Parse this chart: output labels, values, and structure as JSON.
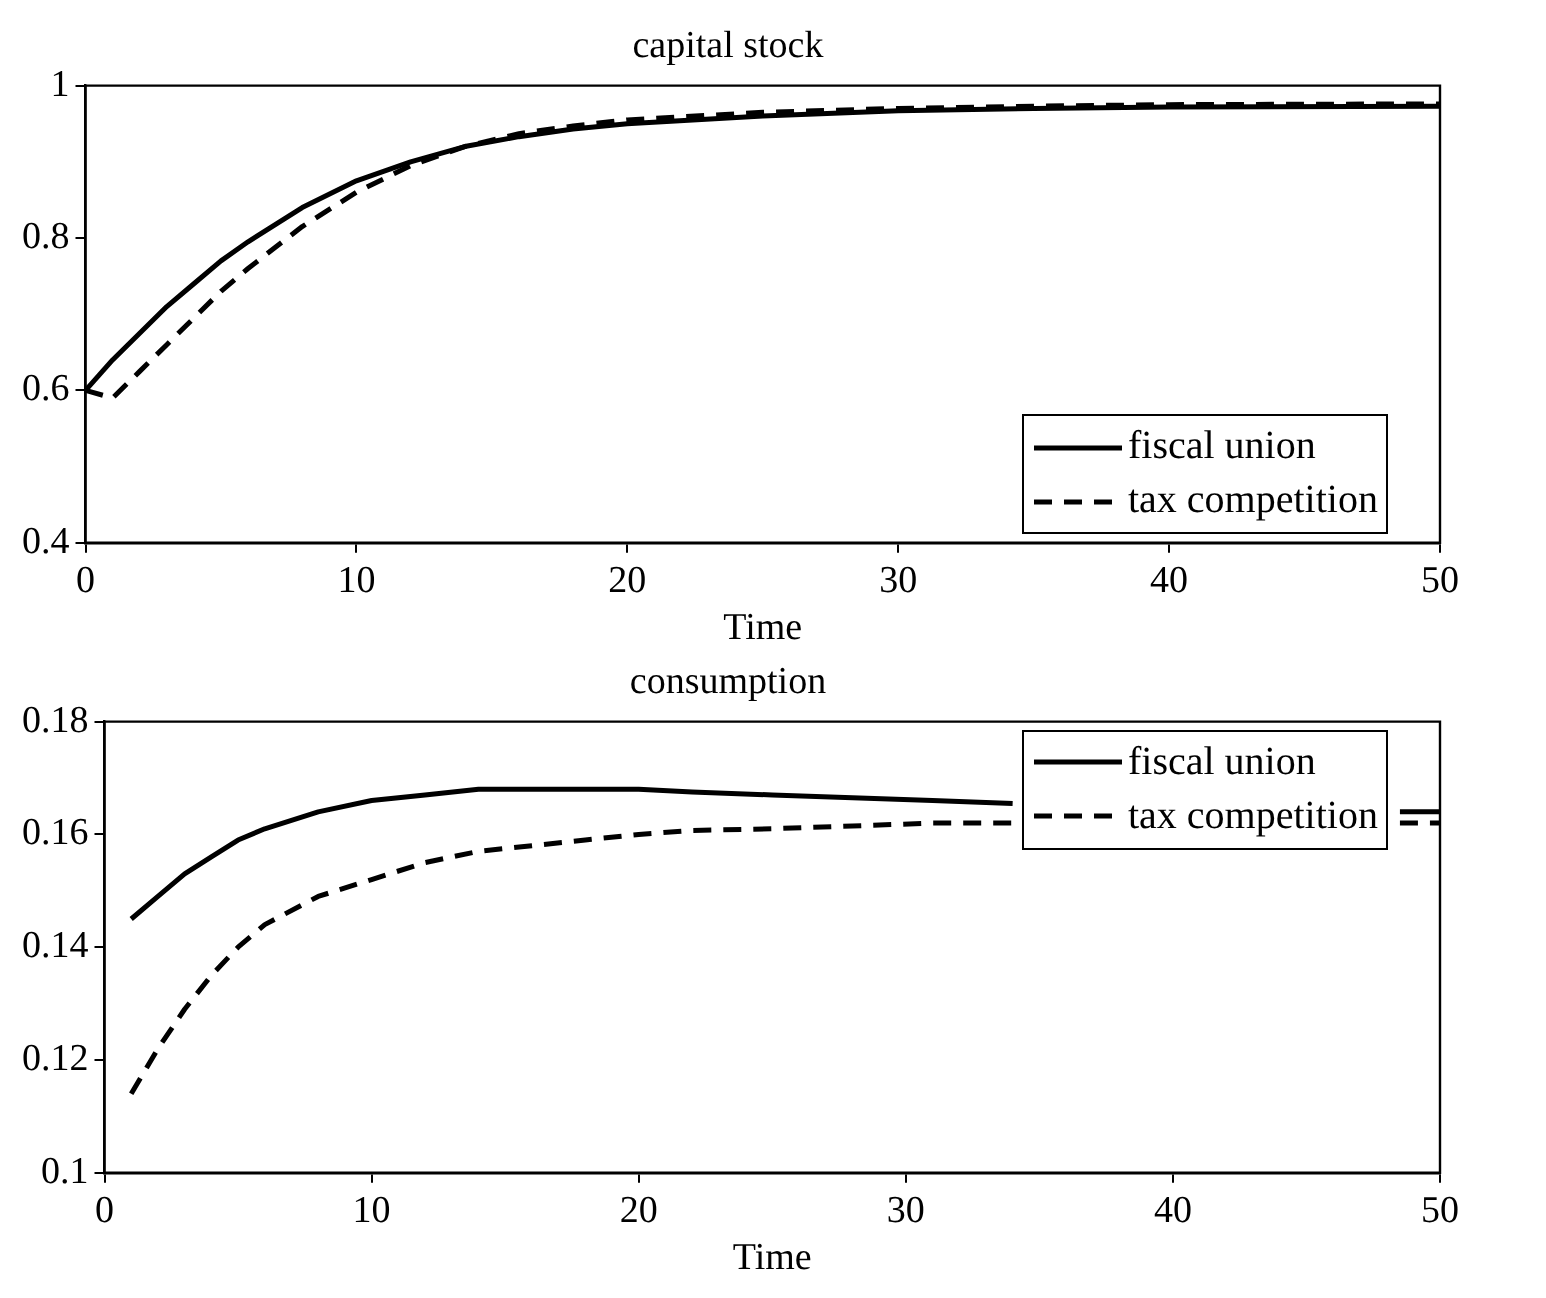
{
  "chart_data": [
    {
      "type": "line",
      "title": "capital stock",
      "xlabel": "Time",
      "x": [
        0,
        1,
        2,
        3,
        4,
        5,
        6,
        8,
        10,
        12,
        14,
        16,
        18,
        20,
        25,
        30,
        35,
        40,
        50
      ],
      "xlim": [
        0,
        50
      ],
      "xticks": [
        0,
        10,
        20,
        30,
        40,
        50
      ],
      "ylim": [
        0.4,
        1
      ],
      "yticks": [
        0.4,
        0.6,
        0.8,
        1
      ],
      "legend": "bottom right",
      "grid": false,
      "marker": "none",
      "series": [
        {
          "name": "fiscal union",
          "color": "#000000",
          "line_style": "solid",
          "values": [
            0.6,
            0.64,
            0.675,
            0.71,
            0.74,
            0.77,
            0.795,
            0.84,
            0.875,
            0.9,
            0.92,
            0.933,
            0.943,
            0.95,
            0.96,
            0.967,
            0.97,
            0.972,
            0.973
          ]
        },
        {
          "name": "tax competition",
          "color": "#000000",
          "line_style": "dashed",
          "values": [
            0.6,
            0.59,
            0.625,
            0.66,
            0.695,
            0.73,
            0.76,
            0.815,
            0.86,
            0.895,
            0.92,
            0.937,
            0.947,
            0.955,
            0.965,
            0.97,
            0.973,
            0.975,
            0.976
          ]
        }
      ]
    },
    {
      "type": "line",
      "title": "consumption",
      "xlabel": "Time",
      "x": [
        1,
        2,
        3,
        4,
        5,
        6,
        8,
        10,
        12,
        14,
        16,
        18,
        20,
        22,
        25,
        28,
        31,
        34,
        40,
        48.5,
        50
      ],
      "xlim": [
        0,
        50
      ],
      "xticks": [
        0,
        10,
        20,
        30,
        40,
        50
      ],
      "ylim": [
        0.1,
        0.18
      ],
      "yticks": [
        0.1,
        0.12,
        0.14,
        0.16,
        0.18
      ],
      "legend": "top right",
      "grid": false,
      "marker": "none",
      "series": [
        {
          "name": "fiscal union",
          "color": "#000000",
          "line_style": "solid",
          "values": [
            0.145,
            0.149,
            0.153,
            0.156,
            0.159,
            0.161,
            0.164,
            0.166,
            0.167,
            0.168,
            0.168,
            0.168,
            0.168,
            0.1675,
            0.167,
            0.1665,
            0.166,
            0.1655,
            null,
            0.164,
            0.164
          ]
        },
        {
          "name": "tax competition",
          "color": "#000000",
          "line_style": "dashed",
          "values": [
            0.114,
            0.122,
            0.129,
            0.135,
            0.14,
            0.144,
            0.149,
            0.152,
            0.155,
            0.157,
            0.158,
            0.159,
            0.16,
            0.1607,
            0.161,
            0.1615,
            0.162,
            0.162,
            null,
            0.162,
            0.162
          ]
        }
      ]
    }
  ]
}
